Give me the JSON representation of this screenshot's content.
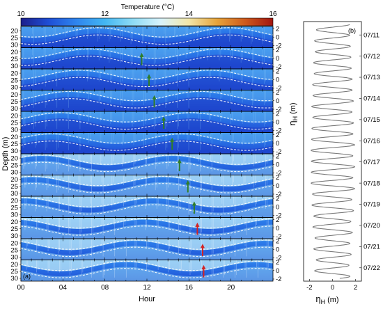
{
  "colorbar": {
    "title": "Temperature (°C)",
    "ticks": [
      10,
      12,
      14,
      16
    ],
    "range": [
      10,
      16
    ],
    "stops": [
      "#1b1e8c",
      "#1f4fd6",
      "#2f86ee",
      "#43b6f2",
      "#8fdcf5",
      "#d8f3fb",
      "#f2e6a8",
      "#e7a43a",
      "#cf5a1e",
      "#a1150f"
    ]
  },
  "panel_a": {
    "label": "(a)",
    "ylabel": "Depth (m)",
    "xlabel": "Hour",
    "xticks": [
      "00",
      "04",
      "08",
      "12",
      "16",
      "20"
    ],
    "depth_ticks": [
      "20",
      "25",
      "30"
    ],
    "right_ticks": [
      "2",
      "0",
      "-2"
    ],
    "right_label": "η",
    "right_label_sub": "H",
    "right_label_unit": "(m)",
    "arrow_colors": {
      "green": "#2f7d2a",
      "red": "#d42323"
    },
    "days": [
      {
        "label": "07/11",
        "arrow_hour": null,
        "arrow_color": "green",
        "phase": 1.0
      },
      {
        "label": "07/12",
        "arrow_hour": 11.5,
        "arrow_color": "green",
        "phase": 1.45
      },
      {
        "label": "07/13",
        "arrow_hour": 12.2,
        "arrow_color": "green",
        "phase": 1.9
      },
      {
        "label": "07/14",
        "arrow_hour": 12.7,
        "arrow_color": "green",
        "phase": 2.35
      },
      {
        "label": "07/15",
        "arrow_hour": 13.6,
        "arrow_color": "green",
        "phase": 2.8
      },
      {
        "label": "07/16",
        "arrow_hour": 14.4,
        "arrow_color": "green",
        "phase": 3.25
      },
      {
        "label": "07/17",
        "arrow_hour": 15.1,
        "arrow_color": "green",
        "phase": 3.7
      },
      {
        "label": "07/18",
        "arrow_hour": 15.9,
        "arrow_color": "green",
        "phase": 4.15
      },
      {
        "label": "07/19",
        "arrow_hour": 16.5,
        "arrow_color": "green",
        "phase": 4.6
      },
      {
        "label": "07/20",
        "arrow_hour": 16.8,
        "arrow_color": "red",
        "phase": 5.05
      },
      {
        "label": "07/21",
        "arrow_hour": 17.3,
        "arrow_color": "red",
        "phase": 5.5
      },
      {
        "label": "07/22",
        "arrow_hour": 17.4,
        "arrow_color": "red",
        "phase": 5.95
      }
    ]
  },
  "panel_b": {
    "label": "(b)",
    "xlabel": "η",
    "xlabel_sub": "H",
    "xlabel_unit": "(m)",
    "xticks": [
      "-2",
      "0",
      "2"
    ],
    "xlim": [
      -2.5,
      2.5
    ],
    "ylabel": "η",
    "ylabel_sub": "H",
    "ylabel_unit": "(m)",
    "date_ticks": [
      "07/11",
      "07/12",
      "07/13",
      "07/14",
      "07/15",
      "07/16",
      "07/17",
      "07/18",
      "07/19",
      "07/20",
      "07/21",
      "07/22"
    ]
  },
  "chart_data": {
    "type": "heatmap",
    "title": "",
    "colorbar_label": "Temperature (°C)",
    "colorbar_range": [
      10,
      16
    ],
    "panels": [
      {
        "id": "a",
        "kind": "depth-time temperature sections with isotherms, one per day",
        "xlabel": "Hour",
        "xlim": [
          0,
          24
        ],
        "ylabel": "Depth (m)",
        "ylim": [
          32,
          17
        ],
        "right_axis": {
          "label": "ηH (m)",
          "ylim": [
            -2.5,
            2.5
          ]
        },
        "days": [
          "07/11",
          "07/12",
          "07/13",
          "07/14",
          "07/15",
          "07/16",
          "07/17",
          "07/18",
          "07/19",
          "07/20",
          "07/21",
          "07/22"
        ],
        "arrow_hours": [
          null,
          11.5,
          12.2,
          12.7,
          13.6,
          14.4,
          15.1,
          15.9,
          16.5,
          16.8,
          17.3,
          17.4
        ]
      },
      {
        "id": "b",
        "type": "line",
        "kind": "tidal surface elevation time series",
        "xlabel": "ηH (m)",
        "xlim": [
          -2.5,
          2.5
        ],
        "y": "date (07/11 to 07/22)",
        "semidiurnal_amplitude_m": [
          1.6,
          1.7,
          1.8,
          1.9,
          1.9,
          2.0,
          2.0,
          2.0,
          1.9,
          1.8,
          1.7,
          1.6
        ]
      }
    ]
  }
}
